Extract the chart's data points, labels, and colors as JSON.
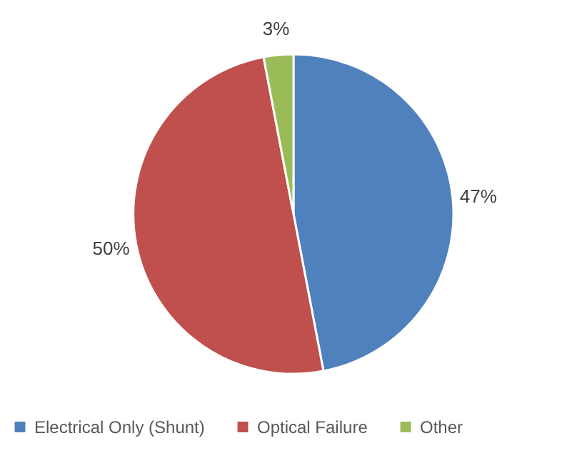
{
  "chart_data": {
    "type": "pie",
    "categories": [
      "Electrical Only (Shunt)",
      "Optical Failure",
      "Other"
    ],
    "values": [
      47,
      50,
      3
    ],
    "colors": [
      "#4f81bd",
      "#c0504d",
      "#9bbb59"
    ],
    "value_labels": [
      "47%",
      "50%",
      "3%"
    ],
    "legend": "bottom"
  }
}
